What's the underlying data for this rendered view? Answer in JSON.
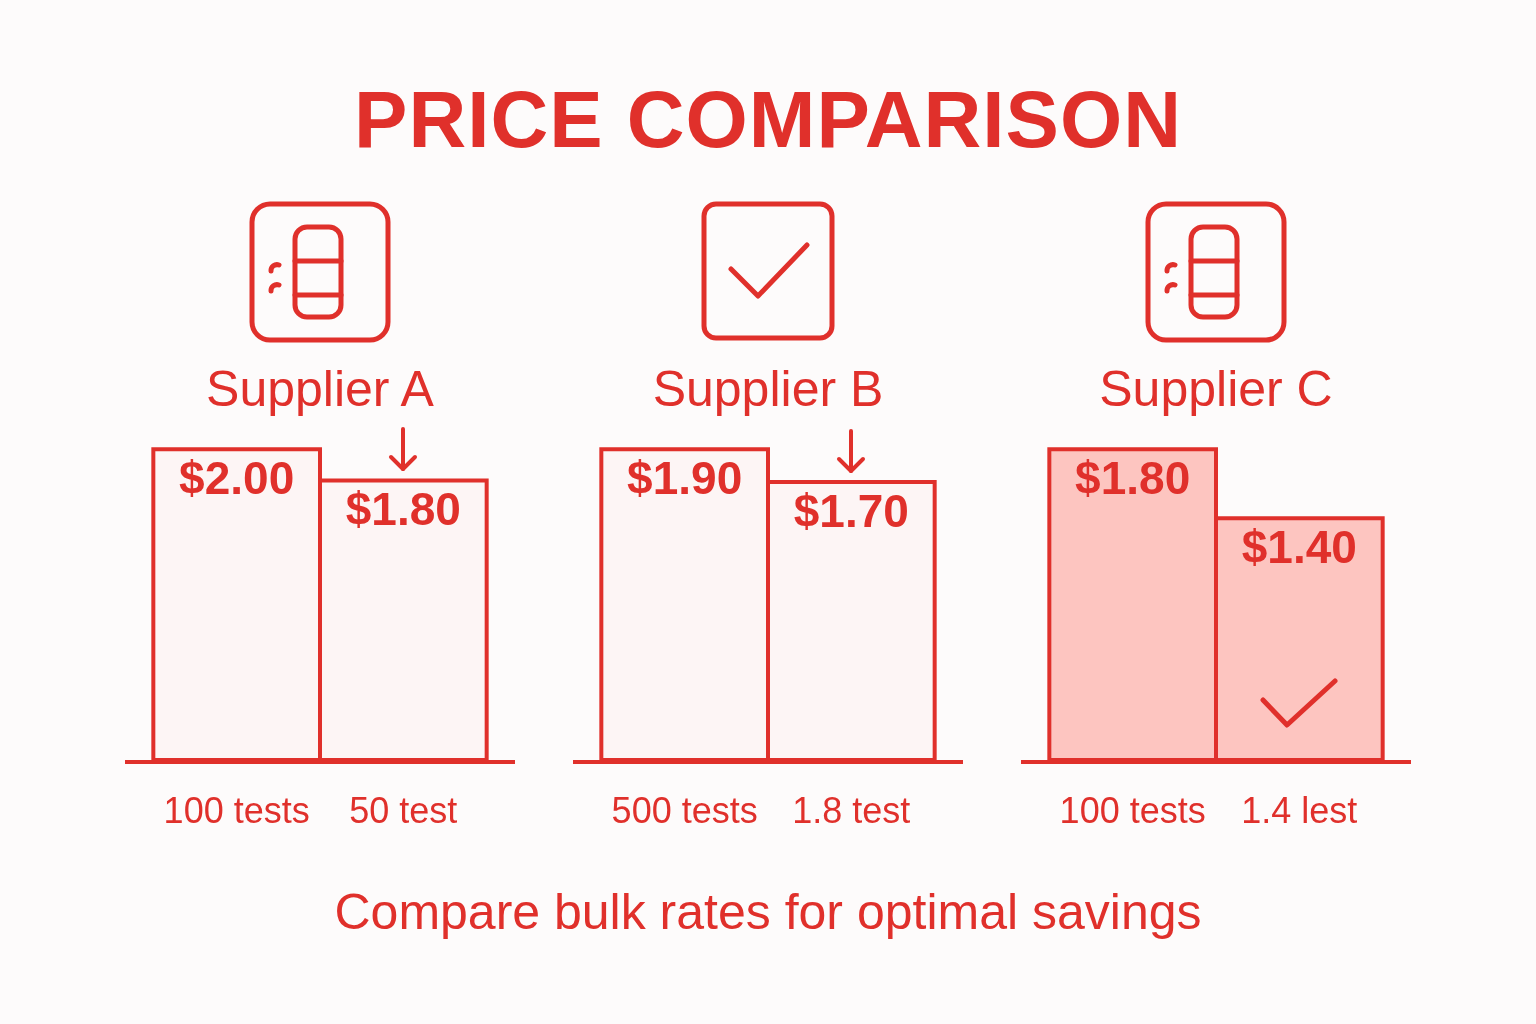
{
  "chart_data": [
    {
      "type": "other",
      "title": "PRICE COMPARISON"
    },
    {
      "type": "bar",
      "title": "Supplier A",
      "categories": [
        "100 tests",
        "50 test"
      ],
      "values": [
        2.0,
        1.8
      ],
      "value_labels": [
        "$2.00",
        "$1.80"
      ],
      "color": "#fdf5f5",
      "tick_labels": "x"
    },
    {
      "type": "bar",
      "title": "Supplier B",
      "categories": [
        "500 tests",
        "1.8 test"
      ],
      "values": [
        1.9,
        1.7
      ],
      "value_labels": [
        "$1.90",
        "$1.70"
      ],
      "color": "#fdf5f5",
      "tick_labels": "x"
    },
    {
      "type": "bar",
      "title": "Supplier C",
      "categories": [
        "100 tests",
        "1.4 lest"
      ],
      "values": [
        1.8,
        1.4
      ],
      "value_labels": [
        "$1.80",
        "$1.40"
      ],
      "color": "#fdc5c0",
      "tick_labels": "x"
    },
    {
      "type": "other",
      "annotations": [
        "Compare bulk rates for optimal savings"
      ]
    }
  ]
}
